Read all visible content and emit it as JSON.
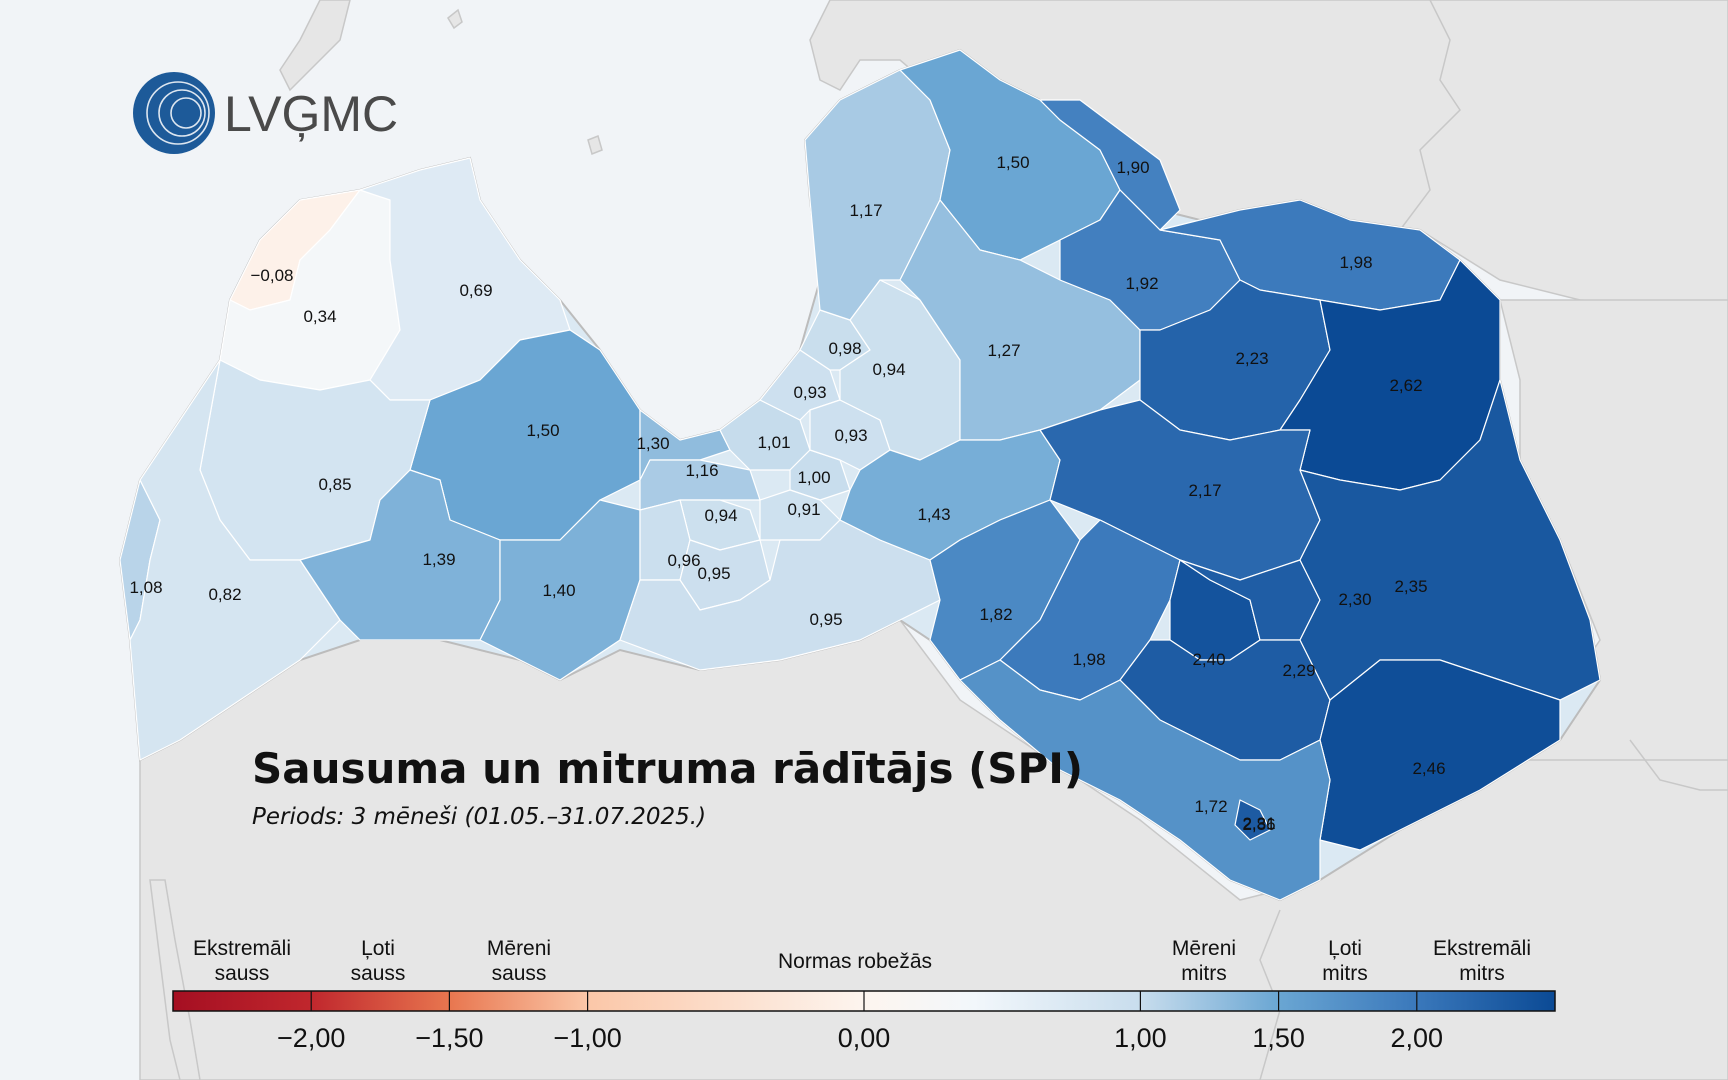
{
  "logo": {
    "text": "LVĢMC"
  },
  "title": "Sausuma un mitruma rādītājs (SPI)",
  "subtitle": "Periods: 3 mēneši (01.05.–31.07.2025.)",
  "colors": {
    "sea": "#f1f4f7",
    "land_outside": "#e6e6e6",
    "border": "#c8c8c8",
    "region_border": "#ffffff",
    "logo_blue": "#1d5a99"
  },
  "regions": [
    {
      "name": "region-a",
      "label": "−0,08",
      "value": -0.08
    },
    {
      "name": "region-b",
      "label": "0,34",
      "value": 0.34
    },
    {
      "name": "region-c",
      "label": "0,69",
      "value": 0.69
    },
    {
      "name": "region-d",
      "label": "1,50",
      "value": 1.5
    },
    {
      "name": "region-e",
      "label": "0,85",
      "value": 0.85
    },
    {
      "name": "region-f",
      "label": "1,08",
      "value": 1.08
    },
    {
      "name": "region-g",
      "label": "0,82",
      "value": 0.82
    },
    {
      "name": "region-h",
      "label": "1,39",
      "value": 1.39
    },
    {
      "name": "region-i",
      "label": "1,40",
      "value": 1.4
    },
    {
      "name": "region-j",
      "label": "1,30",
      "value": 1.3
    },
    {
      "name": "region-k",
      "label": "1,16",
      "value": 1.16
    },
    {
      "name": "region-l",
      "label": "0,94",
      "value": 0.94
    },
    {
      "name": "region-m",
      "label": "0,96",
      "value": 0.96
    },
    {
      "name": "region-n",
      "label": "0,95",
      "value": 0.95
    },
    {
      "name": "region-o",
      "label": "1,01",
      "value": 1.01
    },
    {
      "name": "region-p",
      "label": "1,00",
      "value": 1.0
    },
    {
      "name": "region-q",
      "label": "0,91",
      "value": 0.91
    },
    {
      "name": "region-r",
      "label": "0,93",
      "value": 0.93
    },
    {
      "name": "region-s",
      "label": "0,93",
      "value": 0.93
    },
    {
      "name": "region-t",
      "label": "0,98",
      "value": 0.98
    },
    {
      "name": "region-u",
      "label": "0,94",
      "value": 0.94
    },
    {
      "name": "region-v",
      "label": "0,95",
      "value": 0.95
    },
    {
      "name": "region-w",
      "label": "1,17",
      "value": 1.17
    },
    {
      "name": "region-x",
      "label": "1,50",
      "value": 1.5
    },
    {
      "name": "region-y",
      "label": "1,27",
      "value": 1.27
    },
    {
      "name": "region-z",
      "label": "1,43",
      "value": 1.43
    },
    {
      "name": "region-aa",
      "label": "1,90",
      "value": 1.9
    },
    {
      "name": "region-ab",
      "label": "1,92",
      "value": 1.92
    },
    {
      "name": "region-ac",
      "label": "1,98",
      "value": 1.98
    },
    {
      "name": "region-ad",
      "label": "2,23",
      "value": 2.23
    },
    {
      "name": "region-ae",
      "label": "2,62",
      "value": 2.62
    },
    {
      "name": "region-af",
      "label": "2,17",
      "value": 2.17
    },
    {
      "name": "region-ag",
      "label": "1,82",
      "value": 1.82
    },
    {
      "name": "region-ah",
      "label": "1,98",
      "value": 1.98
    },
    {
      "name": "region-ai",
      "label": "2,40",
      "value": 2.4
    },
    {
      "name": "region-aj",
      "label": "2,29",
      "value": 2.29
    },
    {
      "name": "region-ak",
      "label": "2,30",
      "value": 2.3
    },
    {
      "name": "region-al",
      "label": "2,35",
      "value": 2.35
    },
    {
      "name": "region-am",
      "label": "2,46",
      "value": 2.46
    },
    {
      "name": "region-an",
      "label": "1,72",
      "value": 1.72
    },
    {
      "name": "region-ao",
      "label": "2,31",
      "value": 2.31
    },
    {
      "name": "region-ap",
      "label": "2,86",
      "value": 2.86
    }
  ],
  "legend": {
    "categories": [
      {
        "name": "extremely-dry",
        "line1": "Ekstremāli",
        "line2": "sauss"
      },
      {
        "name": "very-dry",
        "line1": "Ļoti",
        "line2": "sauss"
      },
      {
        "name": "moderately-dry",
        "line1": "Mēreni",
        "line2": "sauss"
      },
      {
        "name": "normal",
        "line1": "Normas robežās",
        "line2": ""
      },
      {
        "name": "moderately-wet",
        "line1": "Mēreni",
        "line2": "mitrs"
      },
      {
        "name": "very-wet",
        "line1": "Ļoti",
        "line2": "mitrs"
      },
      {
        "name": "extremely-wet",
        "line1": "Ekstremāli",
        "line2": "mitrs"
      }
    ],
    "ticks": [
      {
        "label": "−2,00",
        "value": -2.0
      },
      {
        "label": "−1,50",
        "value": -1.5
      },
      {
        "label": "−1,00",
        "value": -1.0
      },
      {
        "label": "0,00",
        "value": 0.0
      },
      {
        "label": "1,00",
        "value": 1.0
      },
      {
        "label": "1,50",
        "value": 1.5
      },
      {
        "label": "2,00",
        "value": 2.0
      }
    ],
    "range": [
      -2.5,
      2.5
    ],
    "gradient": [
      {
        "value": -2.5,
        "color": "#a50f22"
      },
      {
        "value": -2.0,
        "color": "#c0272d"
      },
      {
        "value": -1.5,
        "color": "#e8764f"
      },
      {
        "value": -1.0,
        "color": "#fbc7a8"
      },
      {
        "value": 0.0,
        "color": "#fdf5ef"
      },
      {
        "value": 0.4,
        "color": "#f2f7fb"
      },
      {
        "value": 1.0,
        "color": "#c8dded"
      },
      {
        "value": 1.5,
        "color": "#6aa6d3"
      },
      {
        "value": 2.0,
        "color": "#3a78bb"
      },
      {
        "value": 2.5,
        "color": "#0b4a95"
      }
    ]
  }
}
